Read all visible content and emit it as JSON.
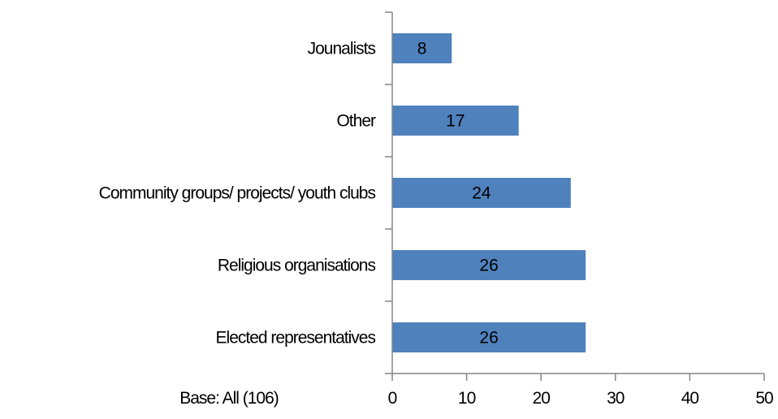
{
  "chart_data": {
    "type": "bar",
    "orientation": "horizontal",
    "categories": [
      "Jounalists",
      "Other",
      "Community groups/ projects/ youth clubs",
      "Religious organisations",
      "Elected representatives"
    ],
    "values": [
      8,
      17,
      24,
      26,
      26
    ],
    "data_labels": [
      "8",
      "17",
      "24",
      "26",
      "26"
    ],
    "title": "",
    "xlabel": "",
    "ylabel": "",
    "xlim": [
      0,
      50
    ],
    "x_ticks": [
      "0",
      "10",
      "20",
      "30",
      "40",
      "50"
    ],
    "grid": false,
    "legend": "none",
    "bar_color": "#4f81bd",
    "note": "Base: All (106)"
  }
}
